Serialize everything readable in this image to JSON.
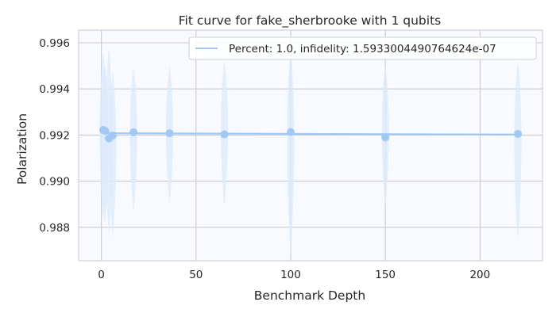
{
  "chart_data": {
    "type": "scatter",
    "title": "Fit curve for fake_sherbrooke with 1 qubits",
    "xlabel": "Benchmark Depth",
    "ylabel": "Polarization",
    "xlim": [
      -12,
      233
    ],
    "ylim": [
      0.98655,
      0.99655
    ],
    "xticks": [
      0,
      50,
      100,
      150,
      200
    ],
    "yticks": [
      0.988,
      0.99,
      0.992,
      0.994,
      0.996
    ],
    "xtick_labels": [
      "0",
      "50",
      "100",
      "150",
      "200"
    ],
    "ytick_labels": [
      "0.988",
      "0.990",
      "0.992",
      "0.994",
      "0.996"
    ],
    "grid": true,
    "legend": {
      "position": "top-right",
      "entries": [
        "Percent: 1.0, infidelity: 1.5933004490764624e-07"
      ]
    },
    "colors": {
      "point": "#a1c9f4",
      "line": "#a1c9f4",
      "violin": "#dce9fc",
      "plot_bg": "#f8faff",
      "grid": "#cbcbcf"
    },
    "points": [
      {
        "x": 1,
        "y": 0.99222
      },
      {
        "x": 2,
        "y": 0.99218
      },
      {
        "x": 4,
        "y": 0.99185
      },
      {
        "x": 6,
        "y": 0.99198
      },
      {
        "x": 17,
        "y": 0.99212
      },
      {
        "x": 36,
        "y": 0.99208
      },
      {
        "x": 65,
        "y": 0.99203
      },
      {
        "x": 100,
        "y": 0.99213
      },
      {
        "x": 150,
        "y": 0.9919
      },
      {
        "x": 220,
        "y": 0.99205
      }
    ],
    "fit_line": {
      "x": [
        1,
        220
      ],
      "y": [
        0.99208,
        0.99202
      ]
    },
    "violins": [
      {
        "x": 1,
        "min": 0.9882,
        "max": 0.9956
      },
      {
        "x": 2,
        "min": 0.9881,
        "max": 0.9951
      },
      {
        "x": 4,
        "min": 0.9876,
        "max": 0.9958
      },
      {
        "x": 6,
        "min": 0.9875,
        "max": 0.9948
      },
      {
        "x": 17,
        "min": 0.9886,
        "max": 0.995
      },
      {
        "x": 36,
        "min": 0.989,
        "max": 0.995
      },
      {
        "x": 65,
        "min": 0.9889,
        "max": 0.9952
      },
      {
        "x": 100,
        "min": 0.9868,
        "max": 0.9958
      },
      {
        "x": 150,
        "min": 0.9889,
        "max": 0.995
      },
      {
        "x": 220,
        "min": 0.9875,
        "max": 0.9952
      }
    ]
  }
}
